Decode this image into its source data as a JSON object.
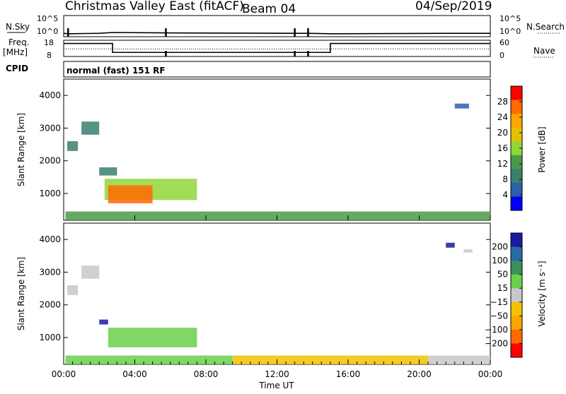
{
  "header": {
    "station": "Christmas Valley East (fitACF)",
    "beam": "Beam 04",
    "date": "04/Sep/2019"
  },
  "top_panels": {
    "nsky_label": "N.Sky",
    "nsky_ticks": [
      "10^5",
      "10^0"
    ],
    "nsearch_label": "N.Search",
    "nsearch_ticks": [
      "10^5",
      "10^0"
    ],
    "freq_label": "Freq.",
    "freq_unit": "[MHz]",
    "freq_ticks": [
      "18",
      "8"
    ],
    "nave_label": "Nave",
    "nave_ticks": [
      "60",
      "0"
    ],
    "cpid_label": "CPID",
    "cpid_text": "normal (fast) 151 RF"
  },
  "power_panel": {
    "ylabel": "Slant Range [km]",
    "yticks": [
      "4000",
      "3000",
      "2000",
      "1000"
    ],
    "colorbar_label": "Power [dB]",
    "colorbar_ticks": [
      "28",
      "24",
      "20",
      "16",
      "12",
      "8",
      "4"
    ],
    "colors": [
      "#ff0000",
      "#ff6a00",
      "#ffa500",
      "#e5c000",
      "#8fd63a",
      "#4a9a4a",
      "#3a7f6f",
      "#2f5fa8",
      "#0000ff"
    ]
  },
  "velocity_panel": {
    "ylabel": "Slant Range [km]",
    "yticks": [
      "4000",
      "3000",
      "2000",
      "1000"
    ],
    "colorbar_label": "Velocity [m s⁻¹]",
    "colorbar_ticks": [
      "200",
      "100",
      "50",
      "15",
      "−15",
      "−50",
      "−100",
      "−200"
    ],
    "colors": [
      "#1a1aa0",
      "#2a6aa8",
      "#3a8f5a",
      "#6ad04a",
      "#c8c8c8",
      "#f2c200",
      "#ffa500",
      "#ff6a00",
      "#ff0000"
    ]
  },
  "xaxis": {
    "label": "Time UT",
    "ticks": [
      "00:00",
      "04:00",
      "08:00",
      "12:00",
      "16:00",
      "20:00",
      "00:00"
    ]
  },
  "chart_data": [
    {
      "type": "line",
      "title": "N.Sky / N.Search",
      "x_hours": [
        0,
        0.25,
        2.0,
        2.75,
        5.75,
        13.0,
        13.75,
        15.0,
        22.0,
        24.0
      ],
      "nsky_log10": [
        0.8,
        0.7,
        0.8,
        1.0,
        0.9,
        0.8,
        0.8,
        0.7,
        0.8,
        0.8
      ],
      "ylim_log10": [
        0,
        5
      ],
      "dips_at_hours": [
        0.25,
        5.75,
        13.0,
        13.75
      ]
    },
    {
      "type": "line",
      "title": "Freq. / Nave",
      "freq_series": {
        "x_hours": [
          0,
          2.75,
          2.75,
          15.0,
          15.0,
          24.0
        ],
        "values_mhz": [
          16.0,
          16.0,
          10.5,
          10.5,
          16.0,
          16.0
        ]
      },
      "nave_level": 28,
      "freq_ylim": [
        8,
        18
      ],
      "nave_ylim": [
        0,
        60
      ],
      "dips_at_hours": [
        5.75,
        13.0,
        13.75
      ]
    },
    {
      "type": "heatmap",
      "title": "Power",
      "xlabel": "Time UT",
      "ylabel": "Slant Range [km]",
      "xlim_hours": [
        0,
        24
      ],
      "ylim_km": [
        180,
        4500
      ],
      "colorbar": "Power [dB]",
      "clim": [
        0,
        30
      ],
      "regions": [
        {
          "t0": 0.1,
          "t1": 24.0,
          "r0": 180,
          "r1": 450,
          "value": 12
        },
        {
          "t0": 0.2,
          "t1": 0.8,
          "r0": 2300,
          "r1": 2600,
          "value": 8
        },
        {
          "t0": 1.0,
          "t1": 2.0,
          "r0": 2800,
          "r1": 3200,
          "value": 7
        },
        {
          "t0": 2.0,
          "t1": 3.0,
          "r0": 1550,
          "r1": 1800,
          "value": 8
        },
        {
          "t0": 2.3,
          "t1": 7.5,
          "r0": 800,
          "r1": 1450,
          "value": 14
        },
        {
          "t0": 2.5,
          "t1": 5.0,
          "r0": 700,
          "r1": 1250,
          "value": 26
        },
        {
          "t0": 22.0,
          "t1": 22.8,
          "r0": 3600,
          "r1": 3750,
          "value": 5
        }
      ]
    },
    {
      "type": "heatmap",
      "title": "Velocity",
      "xlabel": "Time UT",
      "ylabel": "Slant Range [km]",
      "xlim_hours": [
        0,
        24
      ],
      "ylim_km": [
        180,
        4500
      ],
      "colorbar": "Velocity [m s-1]",
      "clim": [
        -200,
        200
      ],
      "regions": [
        {
          "t0": 0.1,
          "t1": 9.5,
          "r0": 180,
          "r1": 450,
          "value": 40
        },
        {
          "t0": 9.5,
          "t1": 20.5,
          "r0": 180,
          "r1": 450,
          "value": -60
        },
        {
          "t0": 20.5,
          "t1": 24.0,
          "r0": 180,
          "r1": 450,
          "value": 20
        },
        {
          "t0": 0.2,
          "t1": 0.8,
          "r0": 2300,
          "r1": 2600,
          "value": 0
        },
        {
          "t0": 1.0,
          "t1": 2.0,
          "r0": 2800,
          "r1": 3200,
          "value": -5
        },
        {
          "t0": 2.0,
          "t1": 2.5,
          "r0": 1400,
          "r1": 1550,
          "value": 220
        },
        {
          "t0": 2.5,
          "t1": 7.5,
          "r0": 700,
          "r1": 1300,
          "value": 60
        },
        {
          "t0": 21.5,
          "t1": 22.0,
          "r0": 3750,
          "r1": 3900,
          "value": 220
        },
        {
          "t0": 22.5,
          "t1": 23.0,
          "r0": 3600,
          "r1": 3700,
          "value": -20
        }
      ]
    }
  ]
}
